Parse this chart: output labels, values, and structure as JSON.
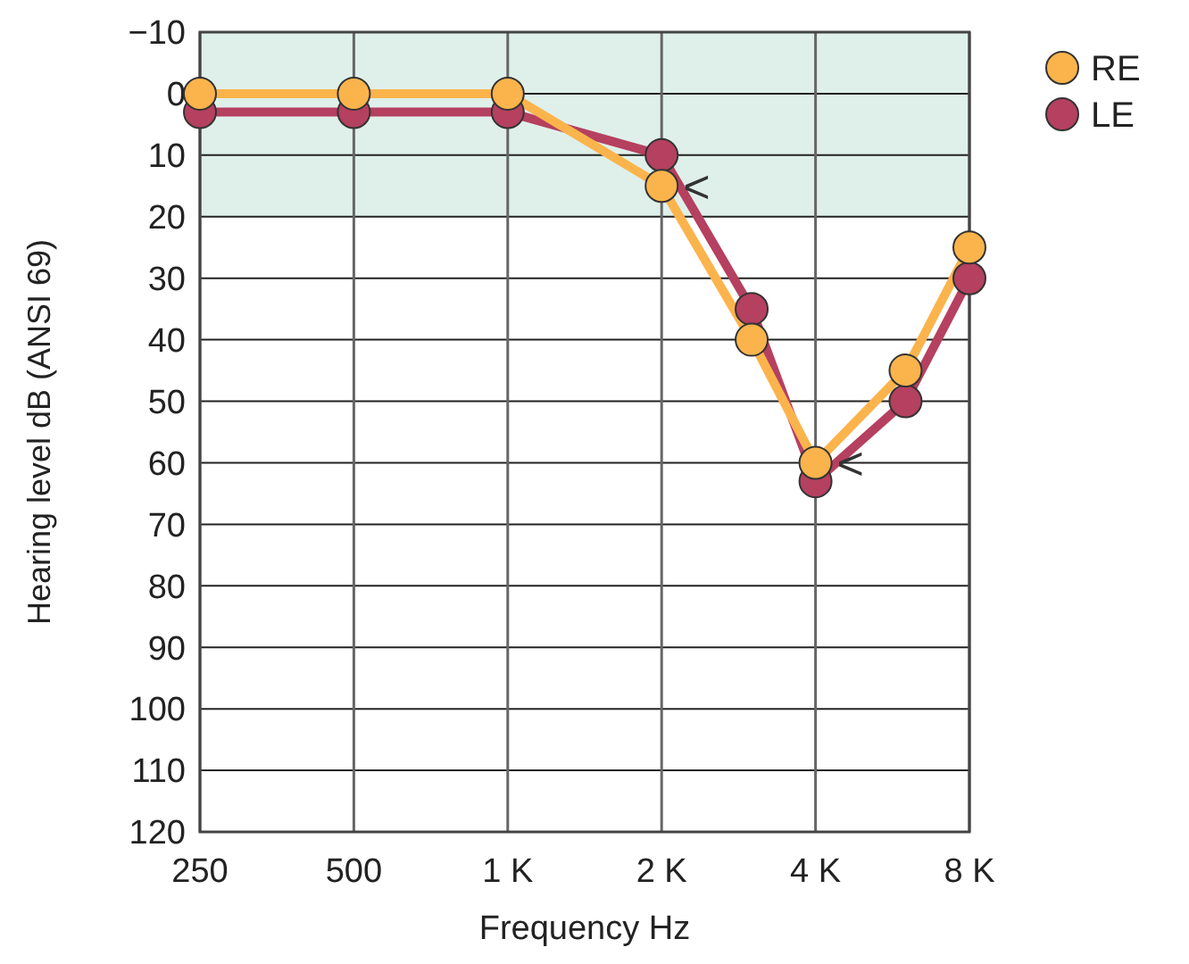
{
  "chart_data": {
    "type": "line",
    "xlabel": "Frequency Hz",
    "ylabel": "Hearing level dB (ANSI 69)",
    "log": "x",
    "xlim": [
      250,
      8000
    ],
    "xticks": [
      250,
      500,
      {
        "value": 1000,
        "label": "1 K"
      },
      {
        "value": 2000,
        "label": "2 K"
      },
      {
        "value": 4000,
        "label": "4 K"
      },
      {
        "value": 8000,
        "label": "8 K"
      }
    ],
    "ylim": [
      120,
      -10
    ],
    "yticks": [
      {
        "value": -10,
        "label": "−10"
      },
      0,
      10,
      20,
      30,
      40,
      50,
      60,
      70,
      80,
      90,
      100,
      110,
      120
    ],
    "x": [
      250,
      500,
      1000,
      2000,
      3000,
      4000,
      6000,
      8000
    ],
    "series": [
      {
        "name": "LE",
        "color": "#b5405f",
        "values": [
          3,
          3,
          3,
          10,
          35,
          63,
          50,
          30
        ]
      },
      {
        "name": "RE",
        "color": "#fbb44c",
        "values": [
          0,
          0,
          0,
          15,
          40,
          60,
          45,
          25
        ]
      }
    ],
    "bands": [
      {
        "axis": "y",
        "from": -10,
        "to": 20,
        "color": "#dff0ea"
      }
    ],
    "annotations": [
      {
        "text": "<",
        "x": 2000,
        "y": 15
      },
      {
        "text": "<",
        "x": 4000,
        "y": 60
      }
    ],
    "grid": true,
    "marker": "circle",
    "legend": "top right"
  }
}
